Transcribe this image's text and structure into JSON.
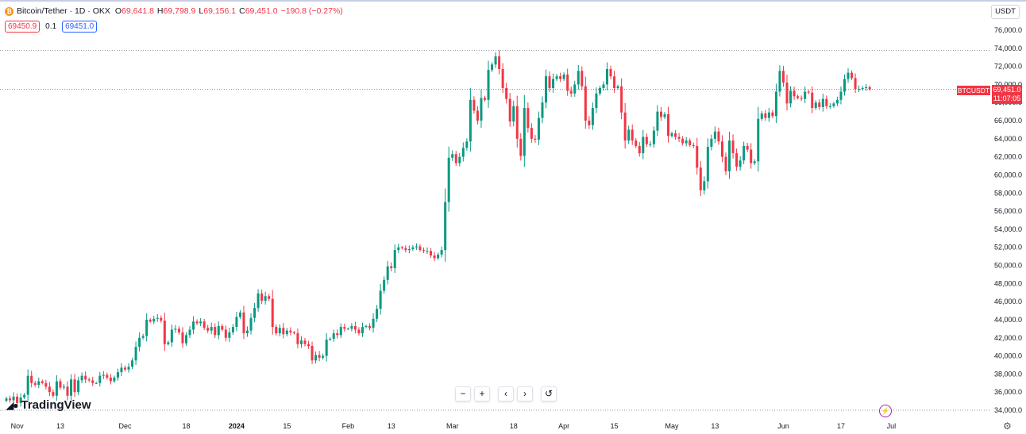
{
  "legend": {
    "symbol_title": "Bitcoin/Tether · 1D · OKX",
    "open_label": "O",
    "open": "69,641.8",
    "high_label": "H",
    "high": "69,798.9",
    "low_label": "L",
    "low": "69,156.1",
    "close_label": "C",
    "close": "69,451.0",
    "change": "−190.8 (−0.27%)"
  },
  "trade": {
    "sell_price": "69450.9",
    "spread": "0.1",
    "buy_price": "69451.0"
  },
  "currency_button": "USDT",
  "last_price_label": {
    "symbol": "BTCUSDT",
    "price": "69,451.0",
    "countdown": "11:07:05"
  },
  "branding": {
    "logo_text": "TradingView"
  },
  "nav_controls": [
    "−",
    "+",
    "‹",
    "›",
    "↺"
  ],
  "colors": {
    "up": "#089981",
    "down": "#f23645",
    "grid_dotted": "#787b86",
    "last_price_line": "#f23645"
  },
  "icons": [
    "tradingview-logo-icon",
    "zoom-out-icon",
    "zoom-in-icon",
    "scroll-left-icon",
    "scroll-right-icon",
    "reset-icon",
    "lightning-icon",
    "settings-gear-icon"
  ],
  "chart_data": {
    "type": "candlestick",
    "title": "Bitcoin/Tether · 1D · OKX",
    "y_axis": {
      "range": [
        33500,
        77500
      ],
      "tick_labels": [
        "34,000.0",
        "36,000.0",
        "38,000.0",
        "40,000.0",
        "42,000.0",
        "44,000.0",
        "46,000.0",
        "48,000.0",
        "50,000.0",
        "52,000.0",
        "54,000.0",
        "56,000.0",
        "58,000.0",
        "60,000.0",
        "62,000.0",
        "64,000.0",
        "66,000.0",
        "68,000.0",
        "70,000.0",
        "72,000.0",
        "74,000.0",
        "76,000.0"
      ],
      "tick_values": [
        34000,
        36000,
        38000,
        40000,
        42000,
        44000,
        46000,
        48000,
        50000,
        52000,
        54000,
        56000,
        58000,
        60000,
        62000,
        64000,
        66000,
        68000,
        70000,
        72000,
        74000,
        76000
      ]
    },
    "x_axis": {
      "tick_labels": [
        "Nov",
        "13",
        "Dec",
        "18",
        "2024",
        "15",
        "Feb",
        "13",
        "Mar",
        "18",
        "Apr",
        "15",
        "May",
        "13",
        "Jun",
        "17",
        "Jul"
      ],
      "tick_dates": [
        "2023-11-01",
        "2023-11-13",
        "2023-12-01",
        "2023-12-18",
        "2024-01-01",
        "2024-01-15",
        "2024-02-01",
        "2024-02-13",
        "2024-03-01",
        "2024-03-18",
        "2024-04-01",
        "2024-04-15",
        "2024-05-01",
        "2024-05-13",
        "2024-06-01",
        "2024-06-17",
        "2024-07-01"
      ],
      "bold_tick": "2024"
    },
    "dotted_levels": [
      73777,
      33999
    ],
    "last_price": 69451.0,
    "grid": false,
    "closes": [
      35300,
      35100,
      35500,
      34800,
      35400,
      35700,
      37800,
      37000,
      36800,
      37200,
      37000,
      36600,
      36000,
      35600,
      37200,
      36500,
      36600,
      35600,
      37400,
      36000,
      37300,
      37800,
      37400,
      37300,
      37000,
      37000,
      37800,
      37900,
      37600,
      37200,
      37600,
      38200,
      38700,
      38500,
      38800,
      39500,
      41000,
      42000,
      42200,
      44000,
      43800,
      44100,
      44200,
      43900,
      41300,
      41500,
      42900,
      43000,
      42600,
      41400,
      42300,
      42900,
      43800,
      43600,
      43800,
      43100,
      42800,
      43200,
      42300,
      43300,
      42900,
      42000,
      42600,
      43200,
      44300,
      44800,
      42500,
      42800,
      44200,
      45300,
      46900,
      46100,
      46600,
      46300,
      43200,
      42500,
      43100,
      42400,
      42800,
      42600,
      42500,
      41300,
      41700,
      41300,
      41100,
      39500,
      40100,
      39800,
      40000,
      41800,
      41900,
      42500,
      42300,
      43200,
      43000,
      43000,
      43300,
      42900,
      42500,
      43200,
      43300,
      43100,
      44100,
      45200,
      47200,
      48400,
      49900,
      49700,
      51700,
      52000,
      51900,
      51700,
      51800,
      52000,
      52100,
      51700,
      51600,
      51600,
      51100,
      50800,
      51200,
      51700,
      57000,
      61900,
      62300,
      61300,
      62000,
      63000,
      63700,
      68300,
      67100,
      66000,
      68500,
      68300,
      71600,
      72200,
      73100,
      71700,
      69600,
      68400,
      65900,
      67600,
      64000,
      62100,
      67400,
      65200,
      64000,
      63900,
      66300,
      68000,
      70900,
      69600,
      70600,
      70900,
      70600,
      71100,
      69300,
      69000,
      70000,
      71500,
      69800,
      66000,
      65500,
      67400,
      69000,
      69600,
      70000,
      71700,
      70900,
      69600,
      69800,
      66900,
      63800,
      65000,
      63800,
      63200,
      62400,
      64200,
      63400,
      63400,
      64900,
      67000,
      66400,
      66700,
      64300,
      64600,
      64200,
      64000,
      63500,
      63800,
      63300,
      63200,
      60800,
      58300,
      59300,
      63100,
      64000,
      64800,
      63700,
      62000,
      60400,
      63800,
      62400,
      60900,
      61600,
      63200,
      62800,
      61300,
      61500,
      66200,
      66800,
      66300,
      66900,
      66500,
      69200,
      71500,
      70200,
      67900,
      69300,
      68700,
      68500,
      68400,
      69200,
      69100,
      67400,
      68000,
      67500,
      68400,
      67600,
      67600,
      67900,
      68300,
      69200,
      70600,
      71300,
      70700,
      69500,
      69500,
      69600,
      69700,
      69451
    ]
  }
}
